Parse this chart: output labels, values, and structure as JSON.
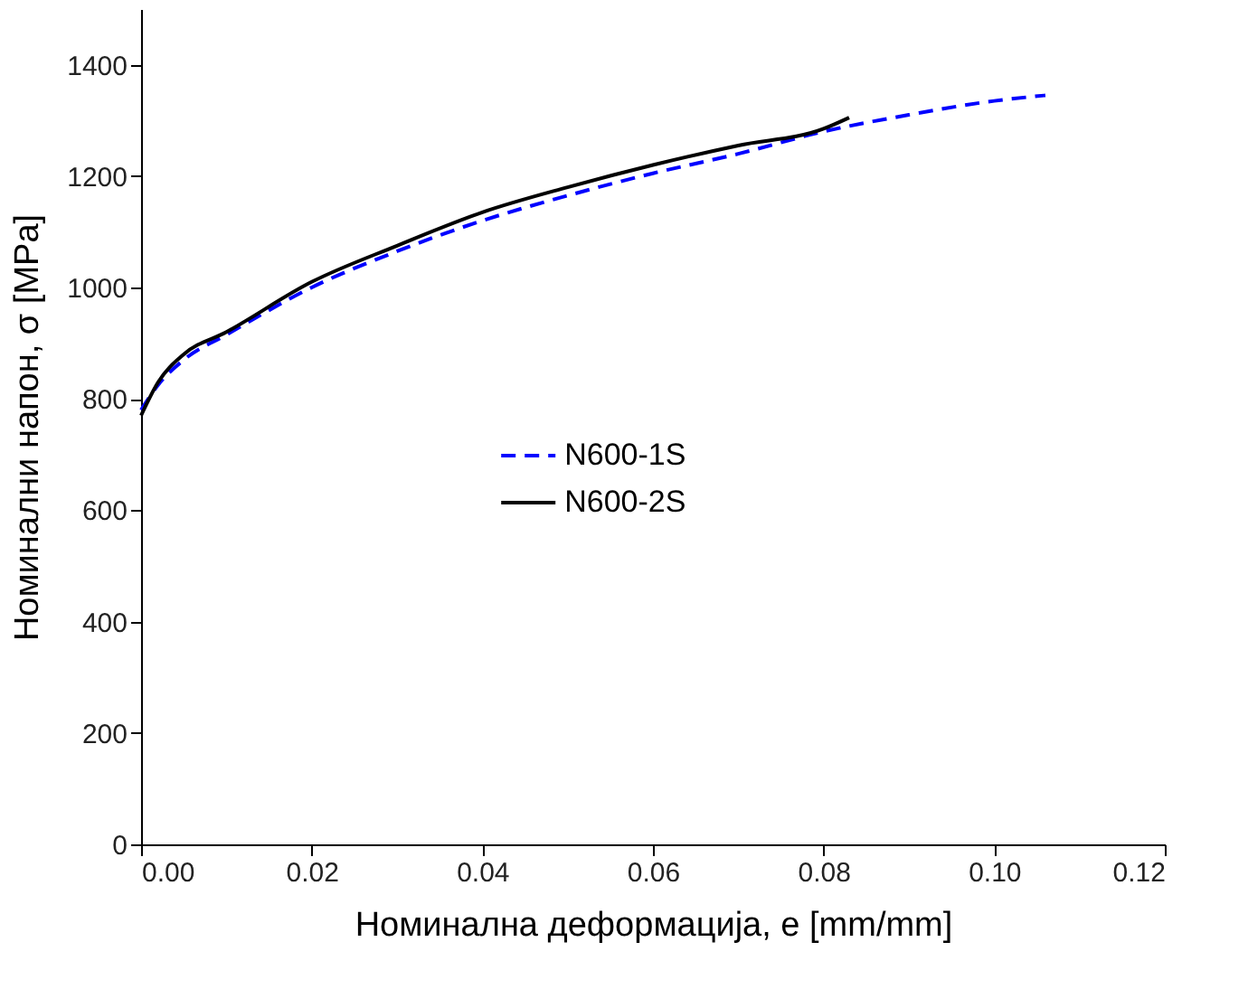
{
  "chart_data": {
    "type": "line",
    "xlabel": "Номинална деформација, e [mm/mm]",
    "ylabel": "Номинални напон, σ [MPa]",
    "xlim": [
      0,
      0.12
    ],
    "xticks": [
      {
        "value": 0,
        "label": "0.00"
      },
      {
        "value": 0.02,
        "label": "0.02"
      },
      {
        "value": 0.04,
        "label": "0.04"
      },
      {
        "value": 0.06,
        "label": "0.06"
      },
      {
        "value": 0.08,
        "label": "0.08"
      },
      {
        "value": 0.1,
        "label": "0.10"
      },
      {
        "value": 0.12,
        "label": "0.12"
      }
    ],
    "ylim": [
      0,
      1500
    ],
    "yticks": [
      0,
      200,
      400,
      600,
      800,
      1000,
      1200,
      1400
    ],
    "grid": false,
    "legend": "center",
    "marker": "none",
    "series": [
      {
        "name": "N600-1S",
        "color": "#0000ff",
        "line_style": "dashed",
        "x": [
          0,
          0.002,
          0.005,
          0.01,
          0.02,
          0.03,
          0.04,
          0.05,
          0.06,
          0.07,
          0.08,
          0.09,
          0.1,
          0.106
        ],
        "values": [
          780,
          825,
          870,
          915,
          1000,
          1065,
          1120,
          1165,
          1205,
          1240,
          1280,
          1310,
          1335,
          1345
        ]
      },
      {
        "name": "N600-2S",
        "color": "#000000",
        "line_style": "solid",
        "x": [
          0,
          0.002,
          0.005,
          0.01,
          0.02,
          0.03,
          0.04,
          0.05,
          0.06,
          0.07,
          0.08,
          0.083
        ],
        "values": [
          770,
          830,
          880,
          920,
          1010,
          1075,
          1135,
          1180,
          1220,
          1255,
          1285,
          1305
        ]
      }
    ]
  }
}
